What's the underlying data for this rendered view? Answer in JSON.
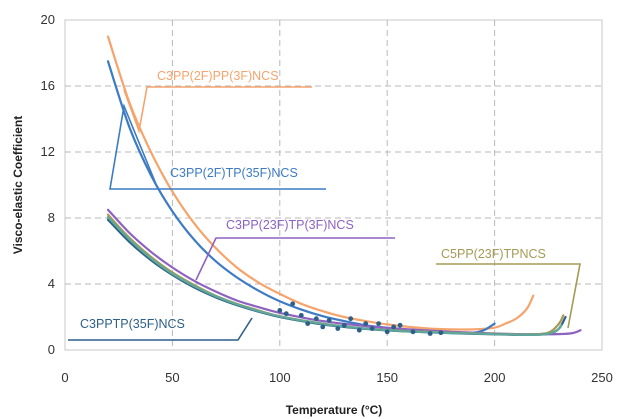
{
  "chart_data": {
    "type": "line",
    "title": "",
    "xlabel": "Temperature (°C)",
    "ylabel": "Visco-elastic Coefficient",
    "xlim": [
      0,
      250
    ],
    "ylim": [
      0,
      20
    ],
    "xticks": [
      0,
      50,
      100,
      150,
      200,
      250
    ],
    "yticks": [
      0,
      4,
      8,
      12,
      16,
      20
    ],
    "grid": true,
    "legend": "none",
    "series": [
      {
        "name": "C3PP(2F)PP(3F)NCS",
        "color": "#f5a46c",
        "points": [
          [
            20,
            19.0
          ],
          [
            30,
            15.0
          ],
          [
            40,
            12.0
          ],
          [
            50,
            9.6
          ],
          [
            60,
            7.7
          ],
          [
            70,
            6.2
          ],
          [
            80,
            5.0
          ],
          [
            90,
            4.1
          ],
          [
            100,
            3.4
          ],
          [
            110,
            2.8
          ],
          [
            120,
            2.35
          ],
          [
            130,
            2.0
          ],
          [
            140,
            1.75
          ],
          [
            150,
            1.55
          ],
          [
            160,
            1.4
          ],
          [
            170,
            1.3
          ],
          [
            180,
            1.25
          ],
          [
            190,
            1.25
          ],
          [
            200,
            1.35
          ],
          [
            205,
            1.6
          ],
          [
            210,
            1.9
          ],
          [
            215,
            2.5
          ],
          [
            218,
            3.3
          ]
        ]
      },
      {
        "name": "C3PP(2F)TP(35F)NCS",
        "color": "#3d7bc4",
        "points": [
          [
            20,
            17.5
          ],
          [
            30,
            13.5
          ],
          [
            40,
            10.6
          ],
          [
            50,
            8.4
          ],
          [
            60,
            6.7
          ],
          [
            70,
            5.4
          ],
          [
            80,
            4.4
          ],
          [
            90,
            3.6
          ],
          [
            100,
            2.95
          ],
          [
            110,
            2.45
          ],
          [
            120,
            2.05
          ],
          [
            130,
            1.75
          ],
          [
            140,
            1.5
          ],
          [
            150,
            1.35
          ],
          [
            160,
            1.2
          ],
          [
            170,
            1.1
          ],
          [
            180,
            1.05
          ],
          [
            190,
            1.05
          ],
          [
            195,
            1.2
          ],
          [
            200,
            1.6
          ]
        ]
      },
      {
        "name": "C3PP(23F)TP(3F)NCS",
        "color": "#8d62c0",
        "points": [
          [
            20,
            8.5
          ],
          [
            30,
            7.1
          ],
          [
            40,
            5.95
          ],
          [
            50,
            5.0
          ],
          [
            60,
            4.2
          ],
          [
            70,
            3.55
          ],
          [
            80,
            3.0
          ],
          [
            90,
            2.6
          ],
          [
            100,
            2.25
          ],
          [
            120,
            1.75
          ],
          [
            140,
            1.45
          ],
          [
            160,
            1.25
          ],
          [
            180,
            1.1
          ],
          [
            200,
            1.0
          ],
          [
            220,
            0.95
          ],
          [
            235,
            1.0
          ],
          [
            240,
            1.2
          ]
        ]
      },
      {
        "name": "C5PP(23F)TPNCS",
        "color": "#a59a55",
        "points": [
          [
            20,
            8.2
          ],
          [
            30,
            6.8
          ],
          [
            40,
            5.65
          ],
          [
            50,
            4.7
          ],
          [
            60,
            3.95
          ],
          [
            70,
            3.3
          ],
          [
            80,
            2.8
          ],
          [
            90,
            2.4
          ],
          [
            100,
            2.05
          ],
          [
            120,
            1.6
          ],
          [
            140,
            1.3
          ],
          [
            160,
            1.15
          ],
          [
            180,
            1.05
          ],
          [
            200,
            0.98
          ],
          [
            215,
            0.95
          ],
          [
            225,
            1.05
          ],
          [
            230,
            1.6
          ],
          [
            232,
            2.1
          ]
        ]
      },
      {
        "name": "C3PPTP(35F)NCS",
        "color": "#2c5f8a",
        "points": [
          [
            20,
            7.9
          ],
          [
            30,
            6.55
          ],
          [
            40,
            5.45
          ],
          [
            50,
            4.55
          ],
          [
            60,
            3.8
          ],
          [
            70,
            3.2
          ],
          [
            80,
            2.72
          ],
          [
            90,
            2.33
          ],
          [
            100,
            2.0
          ],
          [
            120,
            1.55
          ],
          [
            140,
            1.28
          ],
          [
            160,
            1.12
          ],
          [
            180,
            1.02
          ],
          [
            200,
            0.95
          ],
          [
            215,
            0.92
          ],
          [
            225,
            0.98
          ],
          [
            230,
            1.3
          ],
          [
            233,
            2.0
          ]
        ]
      },
      {
        "name": "",
        "color": "#5fa89a",
        "points": [
          [
            20,
            8.05
          ],
          [
            30,
            6.7
          ],
          [
            40,
            5.55
          ],
          [
            50,
            4.62
          ],
          [
            60,
            3.88
          ],
          [
            70,
            3.26
          ],
          [
            80,
            2.77
          ],
          [
            90,
            2.37
          ],
          [
            100,
            2.03
          ],
          [
            120,
            1.58
          ],
          [
            140,
            1.3
          ],
          [
            160,
            1.13
          ],
          [
            180,
            1.03
          ],
          [
            200,
            0.96
          ],
          [
            220,
            0.93
          ],
          [
            228,
            1.1
          ],
          [
            231,
            1.5
          ]
        ]
      }
    ],
    "scatter_points": {
      "color": "#2c5f8a",
      "points": [
        [
          100,
          2.4
        ],
        [
          103,
          2.2
        ],
        [
          106,
          2.8
        ],
        [
          110,
          2.1
        ],
        [
          113,
          1.6
        ],
        [
          117,
          1.9
        ],
        [
          120,
          1.4
        ],
        [
          123,
          1.8
        ],
        [
          127,
          1.3
        ],
        [
          130,
          1.5
        ],
        [
          133,
          1.9
        ],
        [
          137,
          1.2
        ],
        [
          140,
          1.6
        ],
        [
          143,
          1.3
        ],
        [
          146,
          1.6
        ],
        [
          150,
          1.1
        ],
        [
          153,
          1.4
        ],
        [
          156,
          1.5
        ],
        [
          162,
          1.1
        ],
        [
          170,
          1.0
        ],
        [
          175,
          1.05
        ]
      ]
    },
    "annotations": [
      {
        "text": "C3PP(2F)PP(3F)NCS",
        "series": 0,
        "color": "#f5a46c"
      },
      {
        "text": "C3PP(2F)TP(35F)NCS",
        "series": 1,
        "color": "#3d7bc4"
      },
      {
        "text": "C3PP(23F)TP(3F)NCS",
        "series": 2,
        "color": "#8d62c0"
      },
      {
        "text": "C5PP(23F)TPNCS",
        "series": 3,
        "color": "#a59a55"
      },
      {
        "text": "C3PPTP(35F)NCS",
        "series": 4,
        "color": "#2c5f8a"
      }
    ]
  }
}
